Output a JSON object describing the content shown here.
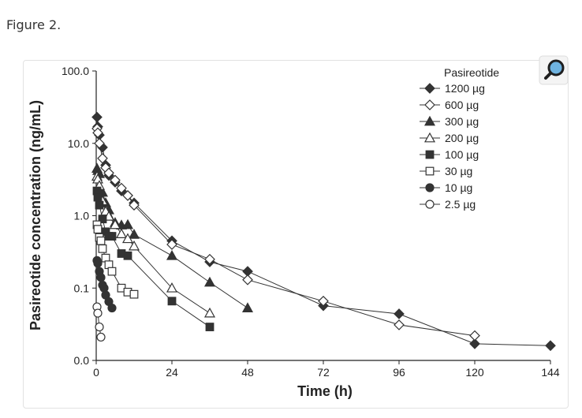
{
  "figure": {
    "caption": "Figure 2."
  },
  "colors": {
    "series_fill": "#333333",
    "axis": "#222222",
    "zoom_ring": "#1f1f1f",
    "zoom_lens": "#6fb3e0"
  },
  "icons": {
    "zoom": "magnifier-icon"
  },
  "chart_data": {
    "type": "line",
    "y_scale": "log",
    "xlabel": "Time (h)",
    "ylabel": "Pasireotide concentration (ng/mL)",
    "xlim": [
      0,
      144
    ],
    "ylim": [
      0.01,
      100
    ],
    "x_ticks": [
      0,
      24,
      48,
      72,
      96,
      120,
      144
    ],
    "x_tick_labels": [
      "0",
      "24",
      "48",
      "72",
      "96",
      "120",
      "144"
    ],
    "y_ticks": [
      0.01,
      0.1,
      1,
      10,
      100
    ],
    "y_tick_labels": [
      "0.0",
      "0.1",
      "1.0",
      "10.0",
      "100.0"
    ],
    "legend_title": "Pasireotide",
    "legend_position": "top-right",
    "series": [
      {
        "name": "1200 µg",
        "marker": "diamond",
        "filled": true,
        "x": [
          0.25,
          0.5,
          1,
          2,
          3,
          4,
          6,
          8,
          10,
          12,
          24,
          36,
          48,
          72,
          96,
          120,
          144
        ],
        "y": [
          23,
          17,
          13,
          8.8,
          5,
          3.6,
          2.9,
          2.2,
          1.9,
          1.5,
          0.45,
          0.23,
          0.17,
          0.057,
          0.044,
          0.017,
          0.016
        ]
      },
      {
        "name": "600 µg",
        "marker": "diamond",
        "filled": false,
        "x": [
          0.25,
          0.5,
          1,
          2,
          3,
          4,
          6,
          8,
          10,
          12,
          24,
          36,
          48,
          72,
          96,
          120
        ],
        "y": [
          16,
          14,
          10,
          6.2,
          4.6,
          3.9,
          3.1,
          2.4,
          1.9,
          1.4,
          0.4,
          0.25,
          0.13,
          0.066,
          0.031,
          0.022
        ]
      },
      {
        "name": "300 µg",
        "marker": "triangle",
        "filled": true,
        "x": [
          0.25,
          0.5,
          1,
          2,
          3,
          4,
          6,
          8,
          10,
          12,
          24,
          36,
          48
        ],
        "y": [
          4.5,
          4.2,
          3.8,
          2.1,
          1.5,
          1.2,
          0.8,
          0.74,
          0.75,
          0.55,
          0.28,
          0.12,
          0.053
        ]
      },
      {
        "name": "200 µg",
        "marker": "triangle",
        "filled": false,
        "x": [
          0.25,
          0.5,
          1,
          2,
          3,
          4,
          6,
          8,
          10,
          12,
          24,
          36
        ],
        "y": [
          3.5,
          3.2,
          2.6,
          1.6,
          1.15,
          0.98,
          0.75,
          0.56,
          0.48,
          0.38,
          0.1,
          0.045
        ]
      },
      {
        "name": "100 µg",
        "marker": "square",
        "filled": true,
        "x": [
          0.25,
          0.5,
          1,
          2,
          3,
          4,
          5,
          8,
          10,
          24,
          36
        ],
        "y": [
          2.2,
          1.8,
          1.4,
          0.9,
          0.6,
          0.52,
          0.52,
          0.3,
          0.28,
          0.066,
          0.029
        ]
      },
      {
        "name": "30 µg",
        "marker": "square",
        "filled": false,
        "x": [
          0.25,
          0.5,
          1,
          1.5,
          2,
          3,
          4,
          5,
          8,
          10,
          12
        ],
        "y": [
          0.75,
          0.65,
          0.5,
          0.45,
          0.35,
          0.26,
          0.21,
          0.17,
          0.1,
          0.088,
          0.082
        ]
      },
      {
        "name": "10 µg",
        "marker": "circle",
        "filled": true,
        "x": [
          0.25,
          0.5,
          1,
          1.5,
          2,
          2.5,
          3,
          4,
          5
        ],
        "y": [
          0.24,
          0.22,
          0.17,
          0.14,
          0.11,
          0.1,
          0.08,
          0.065,
          0.053
        ]
      },
      {
        "name": "2.5 µg",
        "marker": "circle",
        "filled": false,
        "x": [
          0.25,
          0.5,
          1,
          1.5
        ],
        "y": [
          0.055,
          0.045,
          0.029,
          0.021
        ]
      }
    ]
  }
}
